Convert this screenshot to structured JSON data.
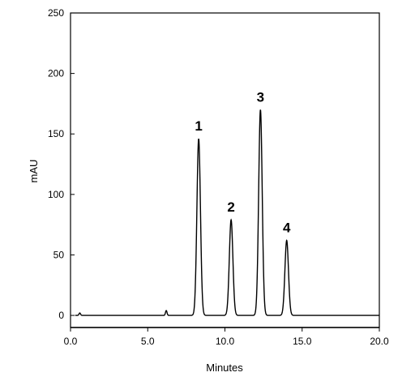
{
  "chart_data": {
    "type": "line",
    "title": "",
    "xlabel": "Minutes",
    "ylabel": "mAU",
    "xlim": [
      0,
      20
    ],
    "ylim": [
      -10,
      250
    ],
    "x_ticks": [
      "0.0",
      "5.0",
      "10.0",
      "15.0",
      "20.0"
    ],
    "y_ticks": [
      "0",
      "50",
      "100",
      "150",
      "200",
      "250"
    ],
    "grid": false,
    "series": [
      {
        "baseline": 0,
        "peaks": [
          {
            "label": "1",
            "time": 8.3,
            "height": 146
          },
          {
            "label": "2",
            "time": 10.4,
            "height": 79
          },
          {
            "label": "3",
            "time": 12.3,
            "height": 170
          },
          {
            "label": "4",
            "time": 14.0,
            "height": 62
          }
        ],
        "minor_peaks": [
          {
            "time": 0.6,
            "height": 2
          },
          {
            "time": 6.2,
            "height": 4
          }
        ]
      }
    ]
  }
}
